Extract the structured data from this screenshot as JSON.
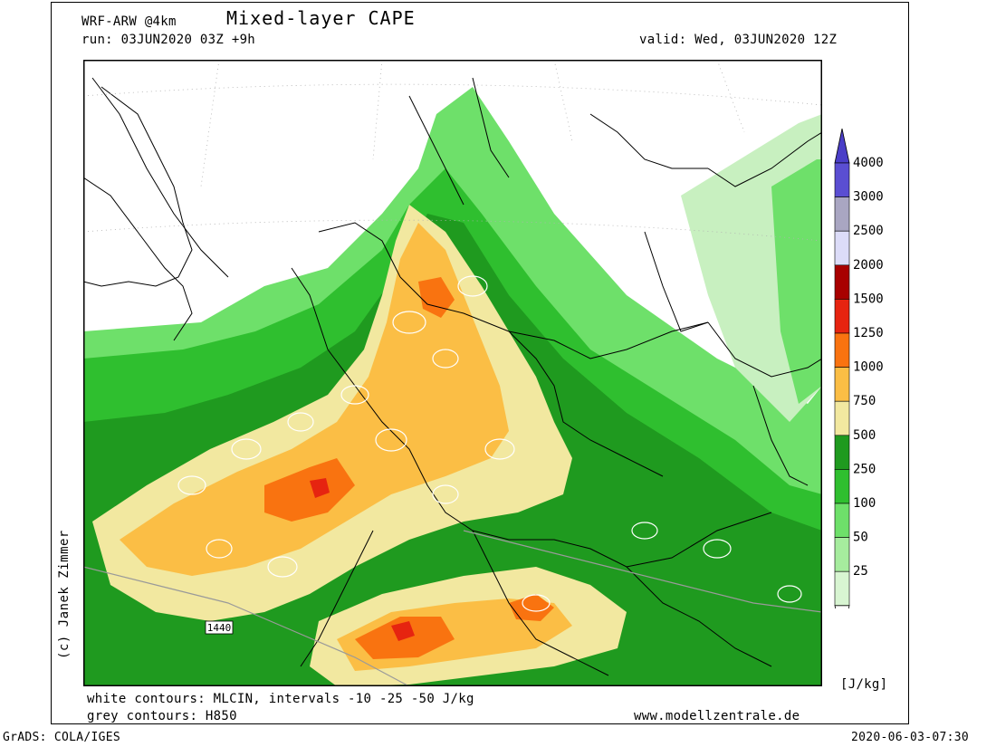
{
  "header": {
    "model": "WRF-ARW @4km",
    "title": "Mixed-layer CAPE",
    "run": "run: 03JUN2020 03Z +9h",
    "valid": "valid: Wed, 03JUN2020 12Z"
  },
  "footer": {
    "caption_white": "white contours: MLCIN, intervals -10 -25 -50 J/kg",
    "caption_grey": "grey contours: H850",
    "website": "www.modellzentrale.de",
    "software": "GrADS: COLA/IGES",
    "timestamp": "2020-06-03-07:30"
  },
  "author": "(c) Janek Zimmer",
  "contour_label": "1440",
  "legend": {
    "unit": "[J/kg]",
    "levels": [
      {
        "label": "25",
        "color": "#d8f5d2"
      },
      {
        "label": "50",
        "color": "#a6ec9e"
      },
      {
        "label": "100",
        "color": "#6ee06a"
      },
      {
        "label": "250",
        "color": "#2fbf2f"
      },
      {
        "label": "500",
        "color": "#1f9a1f"
      },
      {
        "label": "750",
        "color": "#f2e8a0"
      },
      {
        "label": "1000",
        "color": "#fbbe45"
      },
      {
        "label": "1250",
        "color": "#f97310"
      },
      {
        "label": "1500",
        "color": "#e62410"
      },
      {
        "label": "2000",
        "color": "#a80000"
      },
      {
        "label": "2500",
        "color": "#dcdcf8"
      },
      {
        "label": "3000",
        "color": "#a9a6c2"
      },
      {
        "label": "4000",
        "color": "#5a4ed2"
      }
    ],
    "top_color": "#4a3ec8"
  }
}
